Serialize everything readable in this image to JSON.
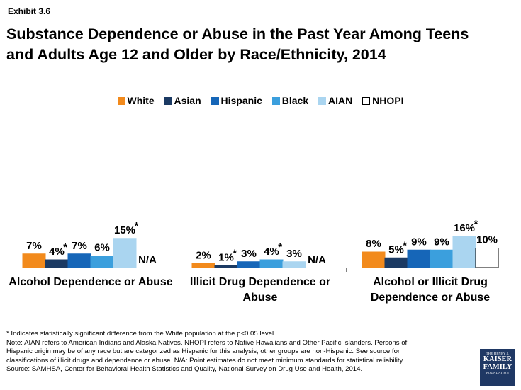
{
  "header": {
    "exhibit": "Exhibit 3.6",
    "title_line1": "Substance Dependence or Abuse in the Past Year Among Teens",
    "title_line2": "and Adults Age 12 and Older by Race/Ethnicity, 2014"
  },
  "legend": [
    {
      "label": "White",
      "color": "#f28a1c"
    },
    {
      "label": "Asian",
      "color": "#1b3a63"
    },
    {
      "label": "Hispanic",
      "color": "#1666b8"
    },
    {
      "label": "Black",
      "color": "#3b9fdd"
    },
    {
      "label": "AIAN",
      "color": "#aad5f0"
    },
    {
      "label": "NHOPI",
      "color": "#ffffff"
    }
  ],
  "chart_data": {
    "type": "bar",
    "title": "Substance Dependence or Abuse in the Past Year Among Teens and Adults Age 12 and Older by Race/Ethnicity, 2014",
    "categories": [
      [
        "Alcohol Dependence or Abuse"
      ],
      [
        "Illicit Drug Dependence or",
        "Abuse"
      ],
      [
        "Alcohol or Illicit Drug",
        "Dependence or Abuse"
      ]
    ],
    "series": [
      {
        "name": "White",
        "values": [
          7,
          2,
          8
        ],
        "labels": [
          "7%",
          "2%",
          "8%"
        ],
        "significant": [
          false,
          false,
          false
        ]
      },
      {
        "name": "Asian",
        "values": [
          4,
          1,
          5
        ],
        "labels": [
          "4%",
          "1%",
          "5%"
        ],
        "significant": [
          true,
          true,
          true
        ]
      },
      {
        "name": "Hispanic",
        "values": [
          7,
          3,
          9
        ],
        "labels": [
          "7%",
          "3%",
          "9%"
        ],
        "significant": [
          false,
          false,
          false
        ]
      },
      {
        "name": "Black",
        "values": [
          6,
          4,
          9
        ],
        "labels": [
          "6%",
          "4%",
          "9%"
        ],
        "significant": [
          false,
          true,
          false
        ]
      },
      {
        "name": "AIAN",
        "values": [
          15,
          3,
          16
        ],
        "labels": [
          "15%",
          "3%",
          "16%"
        ],
        "significant": [
          true,
          false,
          true
        ]
      },
      {
        "name": "NHOPI",
        "values": [
          null,
          null,
          10
        ],
        "labels": [
          "N/A",
          "N/A",
          "10%"
        ],
        "significant": [
          false,
          false,
          false
        ]
      }
    ],
    "significance_marker": "*",
    "ylim": [
      0,
      16
    ],
    "xlabel": "",
    "ylabel": ""
  },
  "notes": [
    "* Indicates statistically significant difference from the White population at the p<0.05 level.",
    "Note: AIAN refers to American Indians and Alaska Natives. NHOPI refers to Native Hawaiians and Other Pacific Islanders. Persons of",
    "Hispanic origin may be of any race but are categorized as Hispanic for this analysis; other groups are non-Hispanic. See source for",
    "classifications of illicit drugs and dependence or abuse. N/A: Point estimates do not meet minimum standards for statistical reliability.",
    "Source: SAMHSA, Center for Behavioral Health Statistics and Quality, National Survey on Drug Use and Health, 2014."
  ],
  "logo": {
    "line1": "THE HENRY J.",
    "line2": "KAISER",
    "line3": "FAMILY",
    "line4": "FOUNDATION"
  }
}
